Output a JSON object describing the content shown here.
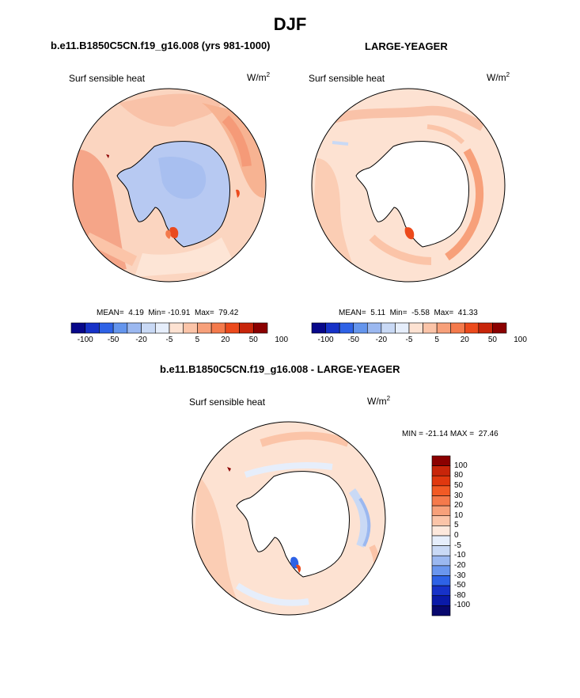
{
  "page": {
    "main_title": "DJF"
  },
  "panel_left": {
    "case_title": "b.e11.B1850C5CN.f19_g16.008 (yrs 981-1000)",
    "variable": "Surf sensible heat",
    "units_base": "W/m",
    "units_exp": "2",
    "stats": {
      "mean_label": "MEAN=",
      "mean": "4.19",
      "min_label": "Min=",
      "min": "-10.91",
      "max_label": "Max=",
      "max": "79.42"
    },
    "colorbar_ticks": [
      "-100",
      "-50",
      "-20",
      "-5",
      "5",
      "20",
      "50",
      "100"
    ]
  },
  "panel_right": {
    "case_title": "LARGE-YEAGER",
    "variable": "Surf sensible heat",
    "units_base": "W/m",
    "units_exp": "2",
    "stats": {
      "mean_label": "MEAN=",
      "mean": "5.11",
      "min_label": "Min=",
      "min": "-5.58",
      "max_label": "Max=",
      "max": "41.33"
    },
    "colorbar_ticks": [
      "-100",
      "-50",
      "-20",
      "-5",
      "5",
      "20",
      "50",
      "100"
    ]
  },
  "panel_diff": {
    "case_title": "b.e11.B1850C5CN.f19_g16.008 - LARGE-YEAGER",
    "variable": "Surf sensible heat",
    "units_base": "W/m",
    "units_exp": "2",
    "minmax_text": "MIN = -21.14 MAX =  27.46",
    "colorbar_ticks": [
      "100",
      "80",
      "50",
      "30",
      "20",
      "10",
      "5",
      "0",
      "-5",
      "-10",
      "-20",
      "-30",
      "-50",
      "-80",
      "-100"
    ]
  },
  "chart_data": [
    {
      "type": "heatmap",
      "projection": "south-polar-stereographic",
      "title": "b.e11.B1850C5CN.f19_g16.008 (yrs 981-1000)",
      "field": "Surf sensible heat",
      "units": "W/m2",
      "mean": 4.19,
      "min": -10.91,
      "max": 79.42,
      "contour_levels": [
        -100,
        -50,
        -20,
        -5,
        5,
        20,
        50,
        100
      ],
      "colorbar_colors": [
        "#08088a",
        "#1732c8",
        "#2e62e6",
        "#6495ed",
        "#9bb8f0",
        "#c9d9f5",
        "#e6eefb",
        "#fde2d2",
        "#fbc4a8",
        "#f7a07a",
        "#f47a4c",
        "#ec4a1c",
        "#c8250a",
        "#8b0000"
      ]
    },
    {
      "type": "heatmap",
      "projection": "south-polar-stereographic",
      "title": "LARGE-YEAGER",
      "field": "Surf sensible heat",
      "units": "W/m2",
      "mean": 5.11,
      "min": -5.58,
      "max": 41.33,
      "contour_levels": [
        -100,
        -50,
        -20,
        -5,
        5,
        20,
        50,
        100
      ],
      "colorbar_colors": [
        "#08088a",
        "#1732c8",
        "#2e62e6",
        "#6495ed",
        "#9bb8f0",
        "#c9d9f5",
        "#e6eefb",
        "#fde2d2",
        "#fbc4a8",
        "#f7a07a",
        "#f47a4c",
        "#ec4a1c",
        "#c8250a",
        "#8b0000"
      ]
    },
    {
      "type": "heatmap",
      "projection": "south-polar-stereographic",
      "title": "b.e11.B1850C5CN.f19_g16.008 - LARGE-YEAGER",
      "field": "Surf sensible heat",
      "units": "W/m2",
      "min": -21.14,
      "max": 27.46,
      "contour_levels": [
        100,
        80,
        50,
        30,
        20,
        10,
        5,
        0,
        -5,
        -10,
        -20,
        -30,
        -50,
        -80,
        -100
      ],
      "colorbar_colors": [
        "#8b0000",
        "#c8250a",
        "#e0380f",
        "#f25a25",
        "#f57a4c",
        "#f7a07a",
        "#fbc4a8",
        "#fde8dc",
        "#e6eefb",
        "#c9d9f5",
        "#9bb8f0",
        "#6a96ee",
        "#2e62e6",
        "#1732c8",
        "#0a1aa8",
        "#08086e"
      ]
    }
  ]
}
